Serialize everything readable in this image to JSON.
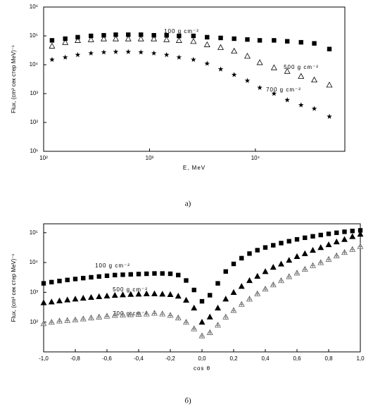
{
  "chart_data": [
    {
      "type": "scatter",
      "xscale": "log",
      "yscale": "log",
      "grid": false,
      "xlabel": "E, MeV",
      "ylabel": "Flux, (cm² сек стер MeV)⁻¹",
      "caption": "а)",
      "annotations": [
        "100 g cm⁻²",
        "500 g cm⁻²",
        "700 g cm⁻²"
      ],
      "xlim": [
        100,
        70000
      ],
      "ylim": [
        10,
        1000000
      ],
      "xticks": [
        {
          "value": 100,
          "label": "10²"
        },
        {
          "value": 1000,
          "label": "10³"
        },
        {
          "value": 10000,
          "label": "10⁴"
        }
      ],
      "yticks": [
        {
          "value": 10,
          "label": "10¹"
        },
        {
          "value": 100,
          "label": "10²"
        },
        {
          "value": 1000,
          "label": "10³"
        },
        {
          "value": 10000,
          "label": "10⁴"
        },
        {
          "value": 100000,
          "label": "10⁵"
        },
        {
          "value": 1000000,
          "label": "10⁶"
        }
      ],
      "x": [
        120,
        160,
        210,
        280,
        370,
        480,
        630,
        830,
        1100,
        1450,
        1900,
        2600,
        3500,
        4700,
        6300,
        8400,
        11000,
        15000,
        20000,
        27000,
        36000,
        50000
      ],
      "series": [
        {
          "marker": "square",
          "color": "#000000",
          "values": [
            70000,
            80000,
            90000,
            100000,
            105000,
            110000,
            110000,
            110000,
            105000,
            105000,
            100000,
            100000,
            90000,
            85000,
            80000,
            75000,
            70000,
            70000,
            65000,
            60000,
            55000,
            35000
          ]
        },
        {
          "marker": "triangle-open",
          "color": "#000000",
          "values": [
            45000,
            60000,
            70000,
            75000,
            80000,
            80000,
            80000,
            80000,
            80000,
            75000,
            70000,
            65000,
            50000,
            40000,
            30000,
            20000,
            12000,
            8000,
            6000,
            4000,
            3000,
            2000
          ]
        },
        {
          "marker": "star",
          "color": "#000000",
          "values": [
            15000,
            18000,
            22000,
            25000,
            27000,
            28000,
            28000,
            27000,
            25000,
            22000,
            18000,
            15000,
            11000,
            7000,
            4500,
            2800,
            1600,
            1000,
            600,
            400,
            300,
            160
          ]
        }
      ]
    },
    {
      "type": "scatter",
      "xscale": "linear",
      "yscale": "log",
      "grid": false,
      "xlabel": "cos θ",
      "ylabel": "Flux, (cm² сек стер MeV)⁻¹",
      "caption": "б)",
      "annotations": [
        "100 g cm⁻²",
        "500 g cm⁻²",
        "700 g cm⁻²"
      ],
      "xlim": [
        -1,
        1
      ],
      "ylim": [
        10,
        200000
      ],
      "xticks": [
        {
          "value": -1,
          "label": "-1,0"
        },
        {
          "value": -0.8,
          "label": "-0,8"
        },
        {
          "value": -0.6,
          "label": "-0,6"
        },
        {
          "value": -0.4,
          "label": "-0,4"
        },
        {
          "value": -0.2,
          "label": "-0,2"
        },
        {
          "value": 0,
          "label": "0,0"
        },
        {
          "value": 0.2,
          "label": "0,2"
        },
        {
          "value": 0.4,
          "label": "0,4"
        },
        {
          "value": 0.6,
          "label": "0,6"
        },
        {
          "value": 0.8,
          "label": "0,8"
        },
        {
          "value": 1,
          "label": "1,0"
        }
      ],
      "yticks": [
        {
          "value": 100,
          "label": "10²"
        },
        {
          "value": 1000,
          "label": "10³"
        },
        {
          "value": 10000,
          "label": "10⁴"
        },
        {
          "value": 100000,
          "label": "10⁵"
        }
      ],
      "x": [
        -1,
        -0.95,
        -0.9,
        -0.85,
        -0.8,
        -0.75,
        -0.7,
        -0.65,
        -0.6,
        -0.55,
        -0.5,
        -0.45,
        -0.4,
        -0.35,
        -0.3,
        -0.25,
        -0.2,
        -0.15,
        -0.1,
        -0.05,
        0,
        0.05,
        0.1,
        0.15,
        0.2,
        0.25,
        0.3,
        0.35,
        0.4,
        0.45,
        0.5,
        0.55,
        0.6,
        0.65,
        0.7,
        0.75,
        0.8,
        0.85,
        0.9,
        0.95,
        1
      ],
      "series": [
        {
          "marker": "square",
          "color": "#000000",
          "values": [
            2000,
            2200,
            2400,
            2600,
            2800,
            3000,
            3200,
            3400,
            3600,
            3800,
            3900,
            4000,
            4100,
            4200,
            4300,
            4300,
            4200,
            3800,
            2500,
            1200,
            500,
            800,
            2000,
            5000,
            9000,
            14000,
            20000,
            26000,
            32000,
            38000,
            45000,
            52000,
            60000,
            68000,
            76000,
            84000,
            92000,
            100000,
            108000,
            115000,
            120000
          ]
        },
        {
          "marker": "triangle",
          "color": "#000000",
          "values": [
            450,
            480,
            520,
            560,
            600,
            640,
            680,
            720,
            760,
            800,
            830,
            860,
            880,
            900,
            900,
            880,
            850,
            750,
            550,
            300,
            100,
            150,
            300,
            600,
            1000,
            1600,
            2500,
            3500,
            5000,
            7000,
            9000,
            12000,
            16000,
            20000,
            26000,
            32000,
            40000,
            50000,
            60000,
            75000,
            90000
          ]
        },
        {
          "marker": "triangle-plus",
          "color": "#666666",
          "values": [
            90,
            100,
            110,
            115,
            120,
            130,
            140,
            150,
            160,
            170,
            175,
            180,
            185,
            190,
            200,
            190,
            170,
            140,
            100,
            60,
            35,
            45,
            80,
            150,
            250,
            400,
            600,
            900,
            1300,
            1800,
            2500,
            3400,
            4500,
            6000,
            8000,
            10000,
            13000,
            17000,
            22000,
            28000,
            35000
          ]
        }
      ]
    }
  ]
}
